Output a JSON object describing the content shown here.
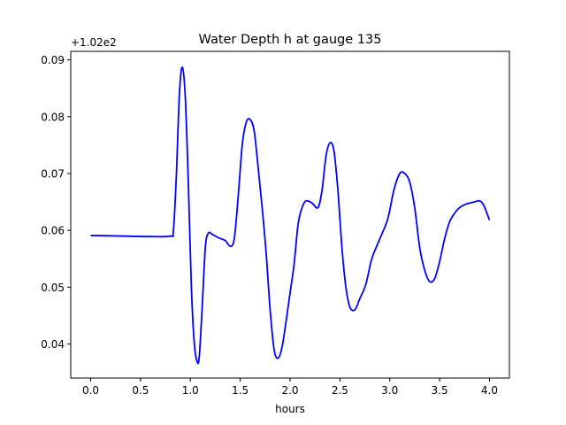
{
  "chart_data": {
    "type": "line",
    "title": "Water Depth h at gauge 135",
    "xlabel": "hours",
    "ylabel": "",
    "offset_label": "+1.02e2",
    "xlim": [
      -0.2,
      4.2
    ],
    "ylim": [
      0.034,
      0.0915
    ],
    "xticks": [
      0.0,
      0.5,
      1.0,
      1.5,
      2.0,
      2.5,
      3.0,
      3.5,
      4.0
    ],
    "xtick_labels": [
      "0.0",
      "0.5",
      "1.0",
      "1.5",
      "2.0",
      "2.5",
      "3.0",
      "3.5",
      "4.0"
    ],
    "yticks": [
      0.04,
      0.05,
      0.06,
      0.07,
      0.08,
      0.09
    ],
    "ytick_labels": [
      "0.04",
      "0.05",
      "0.06",
      "0.07",
      "0.08",
      "0.09"
    ],
    "grid": false,
    "legend": false,
    "series_color": "#0000ff",
    "series": [
      {
        "x": [
          0.0,
          0.3,
          0.6,
          0.8,
          0.83,
          0.86,
          0.89,
          0.92,
          0.95,
          0.98,
          1.01,
          1.04,
          1.07,
          1.09,
          1.12,
          1.15,
          1.18,
          1.22,
          1.28,
          1.35,
          1.4,
          1.44,
          1.48,
          1.52,
          1.56,
          1.6,
          1.64,
          1.68,
          1.72,
          1.76,
          1.8,
          1.84,
          1.88,
          1.92,
          1.96,
          2.0,
          2.04,
          2.08,
          2.12,
          2.16,
          2.22,
          2.28,
          2.32,
          2.36,
          2.4,
          2.44,
          2.48,
          2.52,
          2.56,
          2.6,
          2.65,
          2.7,
          2.76,
          2.82,
          2.9,
          2.98,
          3.04,
          3.1,
          3.15,
          3.2,
          3.25,
          3.3,
          3.35,
          3.4,
          3.45,
          3.5,
          3.55,
          3.6,
          3.65,
          3.7,
          3.75,
          3.8,
          3.85,
          3.9,
          3.94,
          3.97,
          4.0
        ],
        "y": [
          0.0591,
          0.059,
          0.0589,
          0.059,
          0.06,
          0.07,
          0.084,
          0.0887,
          0.083,
          0.068,
          0.05,
          0.04,
          0.0368,
          0.038,
          0.047,
          0.057,
          0.0595,
          0.0593,
          0.0587,
          0.0582,
          0.0572,
          0.0585,
          0.066,
          0.075,
          0.079,
          0.0795,
          0.0775,
          0.071,
          0.064,
          0.056,
          0.046,
          0.039,
          0.0375,
          0.0395,
          0.044,
          0.049,
          0.054,
          0.061,
          0.064,
          0.0652,
          0.0648,
          0.064,
          0.067,
          0.073,
          0.0754,
          0.074,
          0.067,
          0.057,
          0.05,
          0.0465,
          0.046,
          0.048,
          0.0505,
          0.055,
          0.0585,
          0.062,
          0.067,
          0.07,
          0.07,
          0.0685,
          0.064,
          0.057,
          0.053,
          0.051,
          0.0515,
          0.0545,
          0.0585,
          0.0615,
          0.063,
          0.064,
          0.0645,
          0.0648,
          0.065,
          0.0652,
          0.0645,
          0.0632,
          0.0618
        ]
      }
    ]
  }
}
